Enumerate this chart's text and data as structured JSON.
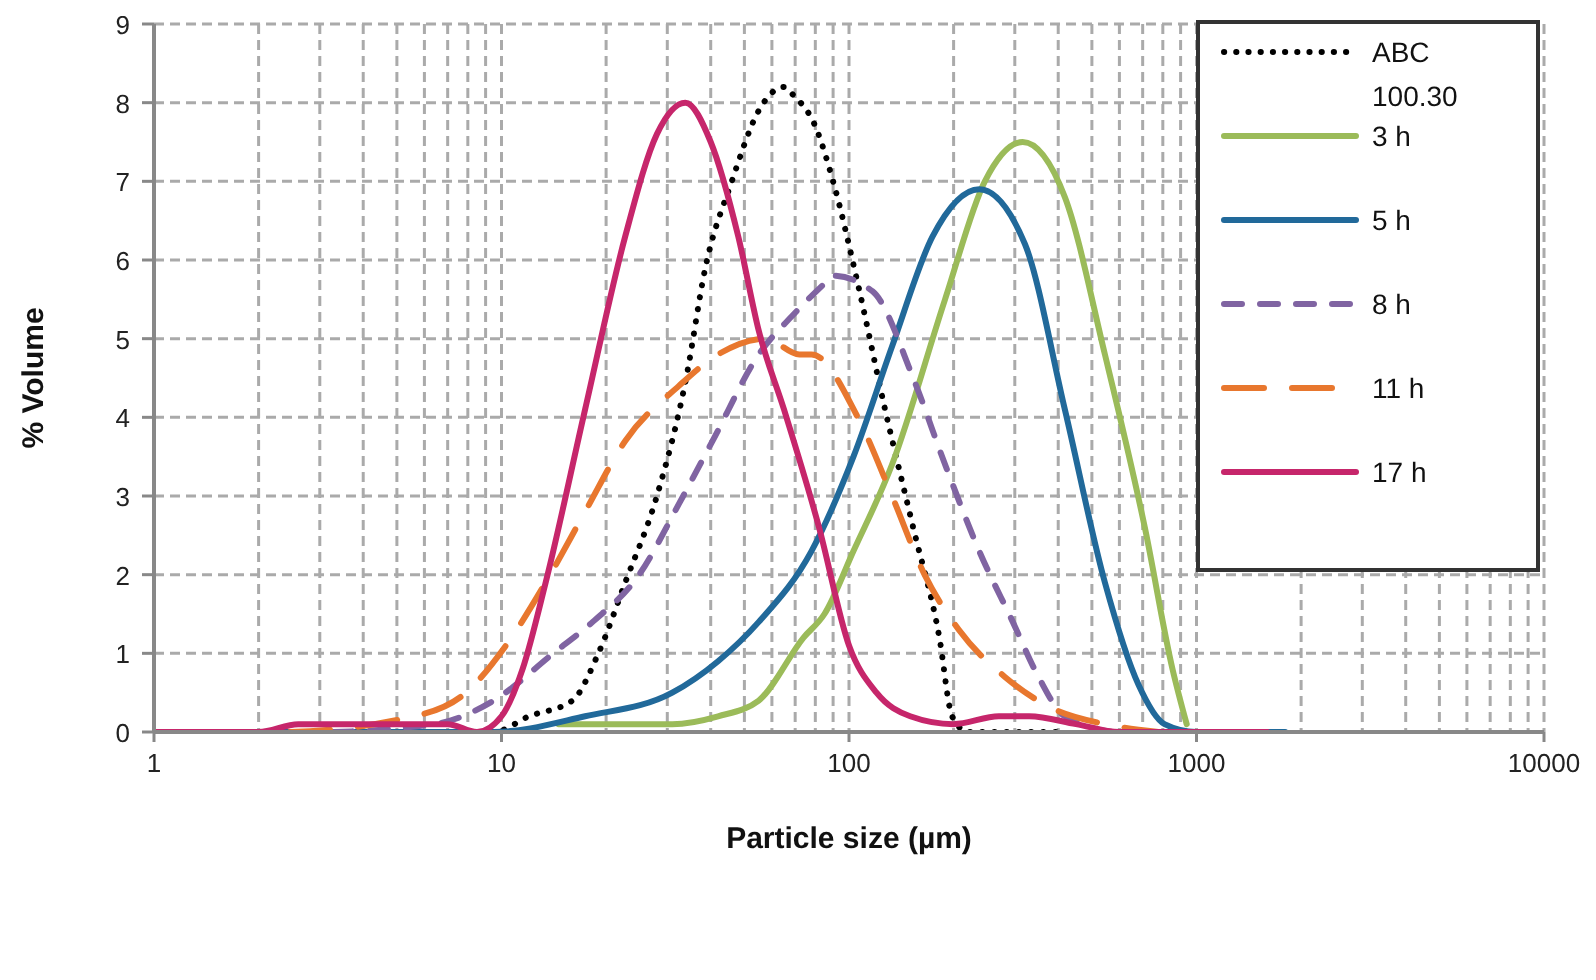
{
  "chart_data": {
    "type": "line",
    "xlabel": "Particle size (µm)",
    "ylabel": "% Volume",
    "log": "x",
    "grid": true,
    "legend": "top right",
    "xlim": [
      1,
      10000
    ],
    "ylim": [
      0,
      9
    ],
    "xticks": [
      1,
      {
        "value": 2,
        "label": null
      },
      {
        "value": 3,
        "label": null
      },
      {
        "value": 4,
        "label": null
      },
      {
        "value": 5,
        "label": null
      },
      {
        "value": 6,
        "label": null
      },
      {
        "value": 7,
        "label": null
      },
      {
        "value": 8,
        "label": null
      },
      {
        "value": 9,
        "label": null
      },
      10,
      {
        "value": 20,
        "label": null
      },
      {
        "value": 30,
        "label": null
      },
      {
        "value": 40,
        "label": null
      },
      {
        "value": 50,
        "label": null
      },
      {
        "value": 60,
        "label": null
      },
      {
        "value": 70,
        "label": null
      },
      {
        "value": 80,
        "label": null
      },
      {
        "value": 90,
        "label": null
      },
      100,
      {
        "value": 200,
        "label": null
      },
      {
        "value": 300,
        "label": null
      },
      {
        "value": 400,
        "label": null
      },
      {
        "value": 500,
        "label": null
      },
      {
        "value": 600,
        "label": null
      },
      {
        "value": 700,
        "label": null
      },
      {
        "value": 800,
        "label": null
      },
      {
        "value": 900,
        "label": null
      },
      1000,
      {
        "value": 2000,
        "label": null
      },
      {
        "value": 3000,
        "label": null
      },
      {
        "value": 4000,
        "label": null
      },
      {
        "value": 5000,
        "label": null
      },
      {
        "value": 6000,
        "label": null
      },
      {
        "value": 7000,
        "label": null
      },
      {
        "value": 8000,
        "label": null
      },
      {
        "value": 9000,
        "label": null
      },
      10000
    ],
    "yticks": [
      0,
      1,
      2,
      3,
      4,
      5,
      6,
      7,
      8,
      9
    ],
    "series": [
      {
        "name": "ABC 100.30",
        "color": "#000000",
        "line_style": "dotted",
        "x": [
          8,
          9.5,
          12,
          16,
          19,
          22.7,
          28,
          34,
          38.6,
          46,
          55,
          65,
          69,
          80,
          90,
          106,
          127,
          153,
          182,
          198,
          220,
          400
        ],
        "values": [
          0,
          0,
          0.2,
          0.4,
          1.0,
          1.9,
          3.0,
          4.5,
          5.9,
          7.0,
          7.9,
          8.2,
          8.1,
          7.7,
          7.0,
          5.7,
          4.1,
          2.6,
          1.2,
          0.2,
          0,
          0
        ]
      },
      {
        "name": "3 h",
        "color": "#9bbb59",
        "line_style": "solid",
        "x": [
          14.6,
          31,
          42,
          55,
          74,
          85,
          103,
          133,
          189,
          246,
          316,
          418,
          545,
          710,
          853,
          937
        ],
        "values": [
          0.1,
          0.1,
          0.2,
          0.4,
          1.2,
          1.5,
          2.3,
          3.4,
          5.5,
          7.0,
          7.5,
          6.8,
          4.8,
          2.6,
          0.8,
          0.1
        ]
      },
      {
        "name": "5 h",
        "color": "#21699a",
        "line_style": "solid",
        "x": [
          1,
          5,
          9.5,
          17.4,
          31,
          42,
          55,
          78,
          103,
          133,
          174,
          237,
          321,
          418,
          545,
          681,
          809,
          1000,
          1800
        ],
        "values": [
          0,
          0,
          0,
          0.2,
          0.5,
          0.9,
          1.4,
          2.3,
          3.5,
          4.9,
          6.3,
          6.9,
          6.2,
          4.1,
          1.9,
          0.6,
          0.1,
          0,
          0
        ]
      },
      {
        "name": "8 h",
        "color": "#8064a2",
        "line_style": "dashed",
        "x": [
          1,
          3,
          6.4,
          9.5,
          14.1,
          18.3,
          24.9,
          32.4,
          40.5,
          55,
          69,
          85,
          90,
          117,
          153,
          189,
          237,
          296,
          351,
          418,
          600,
          1000
        ],
        "values": [
          0,
          0,
          0.1,
          0.4,
          1.0,
          1.4,
          2.0,
          2.9,
          3.7,
          4.8,
          5.3,
          5.7,
          5.8,
          5.6,
          4.5,
          3.4,
          2.3,
          1.4,
          0.7,
          0.2,
          0,
          0
        ]
      },
      {
        "name": "11 h",
        "color": "#e8772e",
        "line_style": "long dashed",
        "x": [
          1,
          2.3,
          5.6,
          7.9,
          10.3,
          13.4,
          17.4,
          22.7,
          32.4,
          42,
          57.5,
          72,
          78,
          106,
          133,
          165,
          207,
          281,
          385,
          545,
          777
        ],
        "values": [
          0,
          0,
          0.2,
          0.5,
          1.1,
          1.9,
          2.8,
          3.7,
          4.4,
          4.8,
          5.0,
          4.8,
          4.8,
          4.0,
          3.0,
          2.0,
          1.3,
          0.7,
          0.3,
          0.1,
          0
        ]
      },
      {
        "name": "17 h",
        "color": "#c6266b",
        "line_style": "solid",
        "x": [
          1,
          2,
          2.6,
          3.5,
          5,
          7,
          8.5,
          10,
          11.5,
          13.4,
          17.4,
          22.7,
          28,
          33.8,
          40,
          48,
          55,
          65,
          82,
          100,
          120,
          150,
          200,
          270,
          330,
          450,
          600,
          1600
        ],
        "values": [
          0,
          0,
          0.1,
          0.1,
          0.1,
          0.1,
          0,
          0.2,
          0.8,
          1.9,
          4.1,
          6.3,
          7.6,
          8.0,
          7.5,
          6.3,
          5.1,
          4.1,
          2.6,
          1.1,
          0.5,
          0.2,
          0.1,
          0.2,
          0.2,
          0.1,
          0,
          0
        ]
      }
    ]
  }
}
